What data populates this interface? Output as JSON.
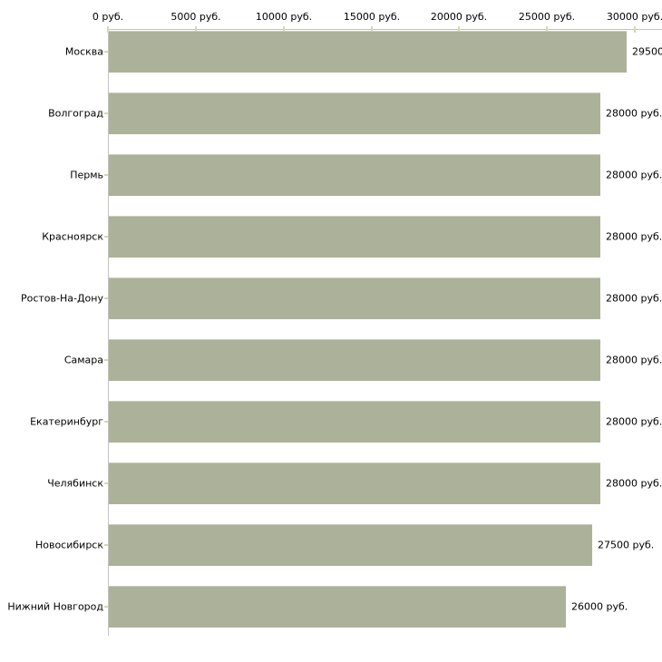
{
  "chart_data": {
    "type": "bar",
    "orientation": "horizontal",
    "title": "",
    "unit": "руб.",
    "categories": [
      "Москва",
      "Волгоград",
      "Пермь",
      "Красноярск",
      "Ростов-На-Дону",
      "Самара",
      "Екатеринбург",
      "Челябинск",
      "Новосибирск",
      "Нижний Новгород"
    ],
    "values": [
      29500,
      28000,
      28000,
      28000,
      28000,
      28000,
      28000,
      28000,
      27500,
      26000
    ],
    "value_labels": [
      "29500",
      "28000 руб.",
      "28000 руб.",
      "28000 руб.",
      "28000 руб.",
      "28000 руб.",
      "28000 руб.",
      "28000 руб.",
      "27500 руб.",
      "26000 руб."
    ],
    "x_axis": {
      "position": "top",
      "range": [
        0,
        30000
      ],
      "tick_values": [
        0,
        5000,
        10000,
        15000,
        20000,
        25000,
        30000
      ],
      "tick_labels": [
        "0 руб.",
        "5000 руб.",
        "10000 руб.",
        "15000 руб.",
        "20000 руб.",
        "25000 руб.",
        "30000 руб."
      ]
    },
    "legend": "none",
    "grid": "off",
    "colors": {
      "bar_fill": "#acb299",
      "bar_top_highlight": "#c9cdb9",
      "axis_line": "#c3c3c3",
      "tick_mark": "#d8d8ae",
      "text": "#000000",
      "background": "#ffffff"
    }
  }
}
